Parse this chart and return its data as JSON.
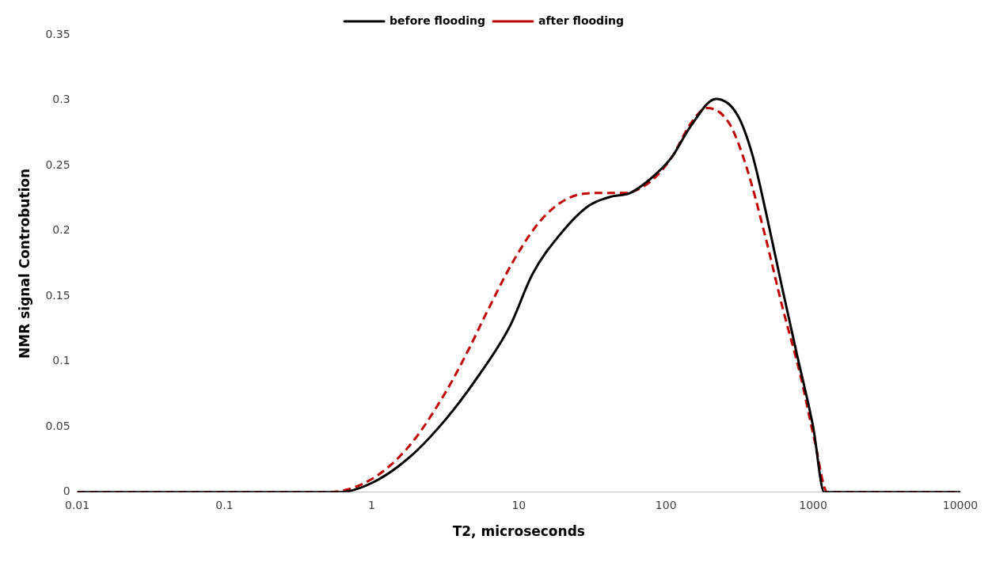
{
  "chart_data": {
    "type": "line",
    "xlabel": "T2, microseconds",
    "ylabel": "NMR signal Controbution",
    "log": "x",
    "xlim": [
      0.01,
      10000
    ],
    "xticks": [
      0.01,
      0.1,
      1,
      10,
      100,
      1000,
      10000
    ],
    "ylim": [
      0,
      0.35
    ],
    "yticks": [
      0,
      0.05,
      0.1,
      0.15,
      0.2,
      0.25,
      0.3,
      0.35
    ],
    "grid": false,
    "legend": "top",
    "marker": "none",
    "series": [
      {
        "name": "before flooding",
        "color": "#000000",
        "line_style": "solid",
        "x": [
          0.01,
          0.1,
          0.6,
          1,
          1.82,
          3.2,
          5.4,
          8.7,
          12.4,
          19,
          29.7,
          41.7,
          57,
          77,
          109,
          147,
          219,
          305,
          387,
          489,
          617,
          781,
          1000,
          1190,
          10000
        ],
        "values": [
          0,
          0,
          0,
          0.007,
          0.027,
          0.056,
          0.09,
          0.127,
          0.167,
          0.197,
          0.219,
          0.226,
          0.229,
          0.239,
          0.256,
          0.28,
          0.301,
          0.289,
          0.258,
          0.209,
          0.156,
          0.104,
          0.05,
          0,
          0
        ]
      },
      {
        "name": "after flooding",
        "color": "#c00000",
        "line_style": "dashed",
        "x": [
          0.01,
          0.1,
          0.5,
          1,
          1.82,
          3.2,
          4.6,
          5.9,
          9.2,
          14.1,
          21.7,
          34,
          52,
          77,
          109,
          147,
          190,
          270,
          352,
          470,
          617,
          817,
          1025,
          1250,
          10000
        ],
        "values": [
          0,
          0,
          0,
          0.01,
          0.036,
          0.077,
          0.11,
          0.135,
          0.177,
          0.208,
          0.225,
          0.229,
          0.229,
          0.237,
          0.256,
          0.282,
          0.294,
          0.282,
          0.249,
          0.197,
          0.142,
          0.09,
          0.039,
          0,
          0
        ]
      }
    ]
  }
}
